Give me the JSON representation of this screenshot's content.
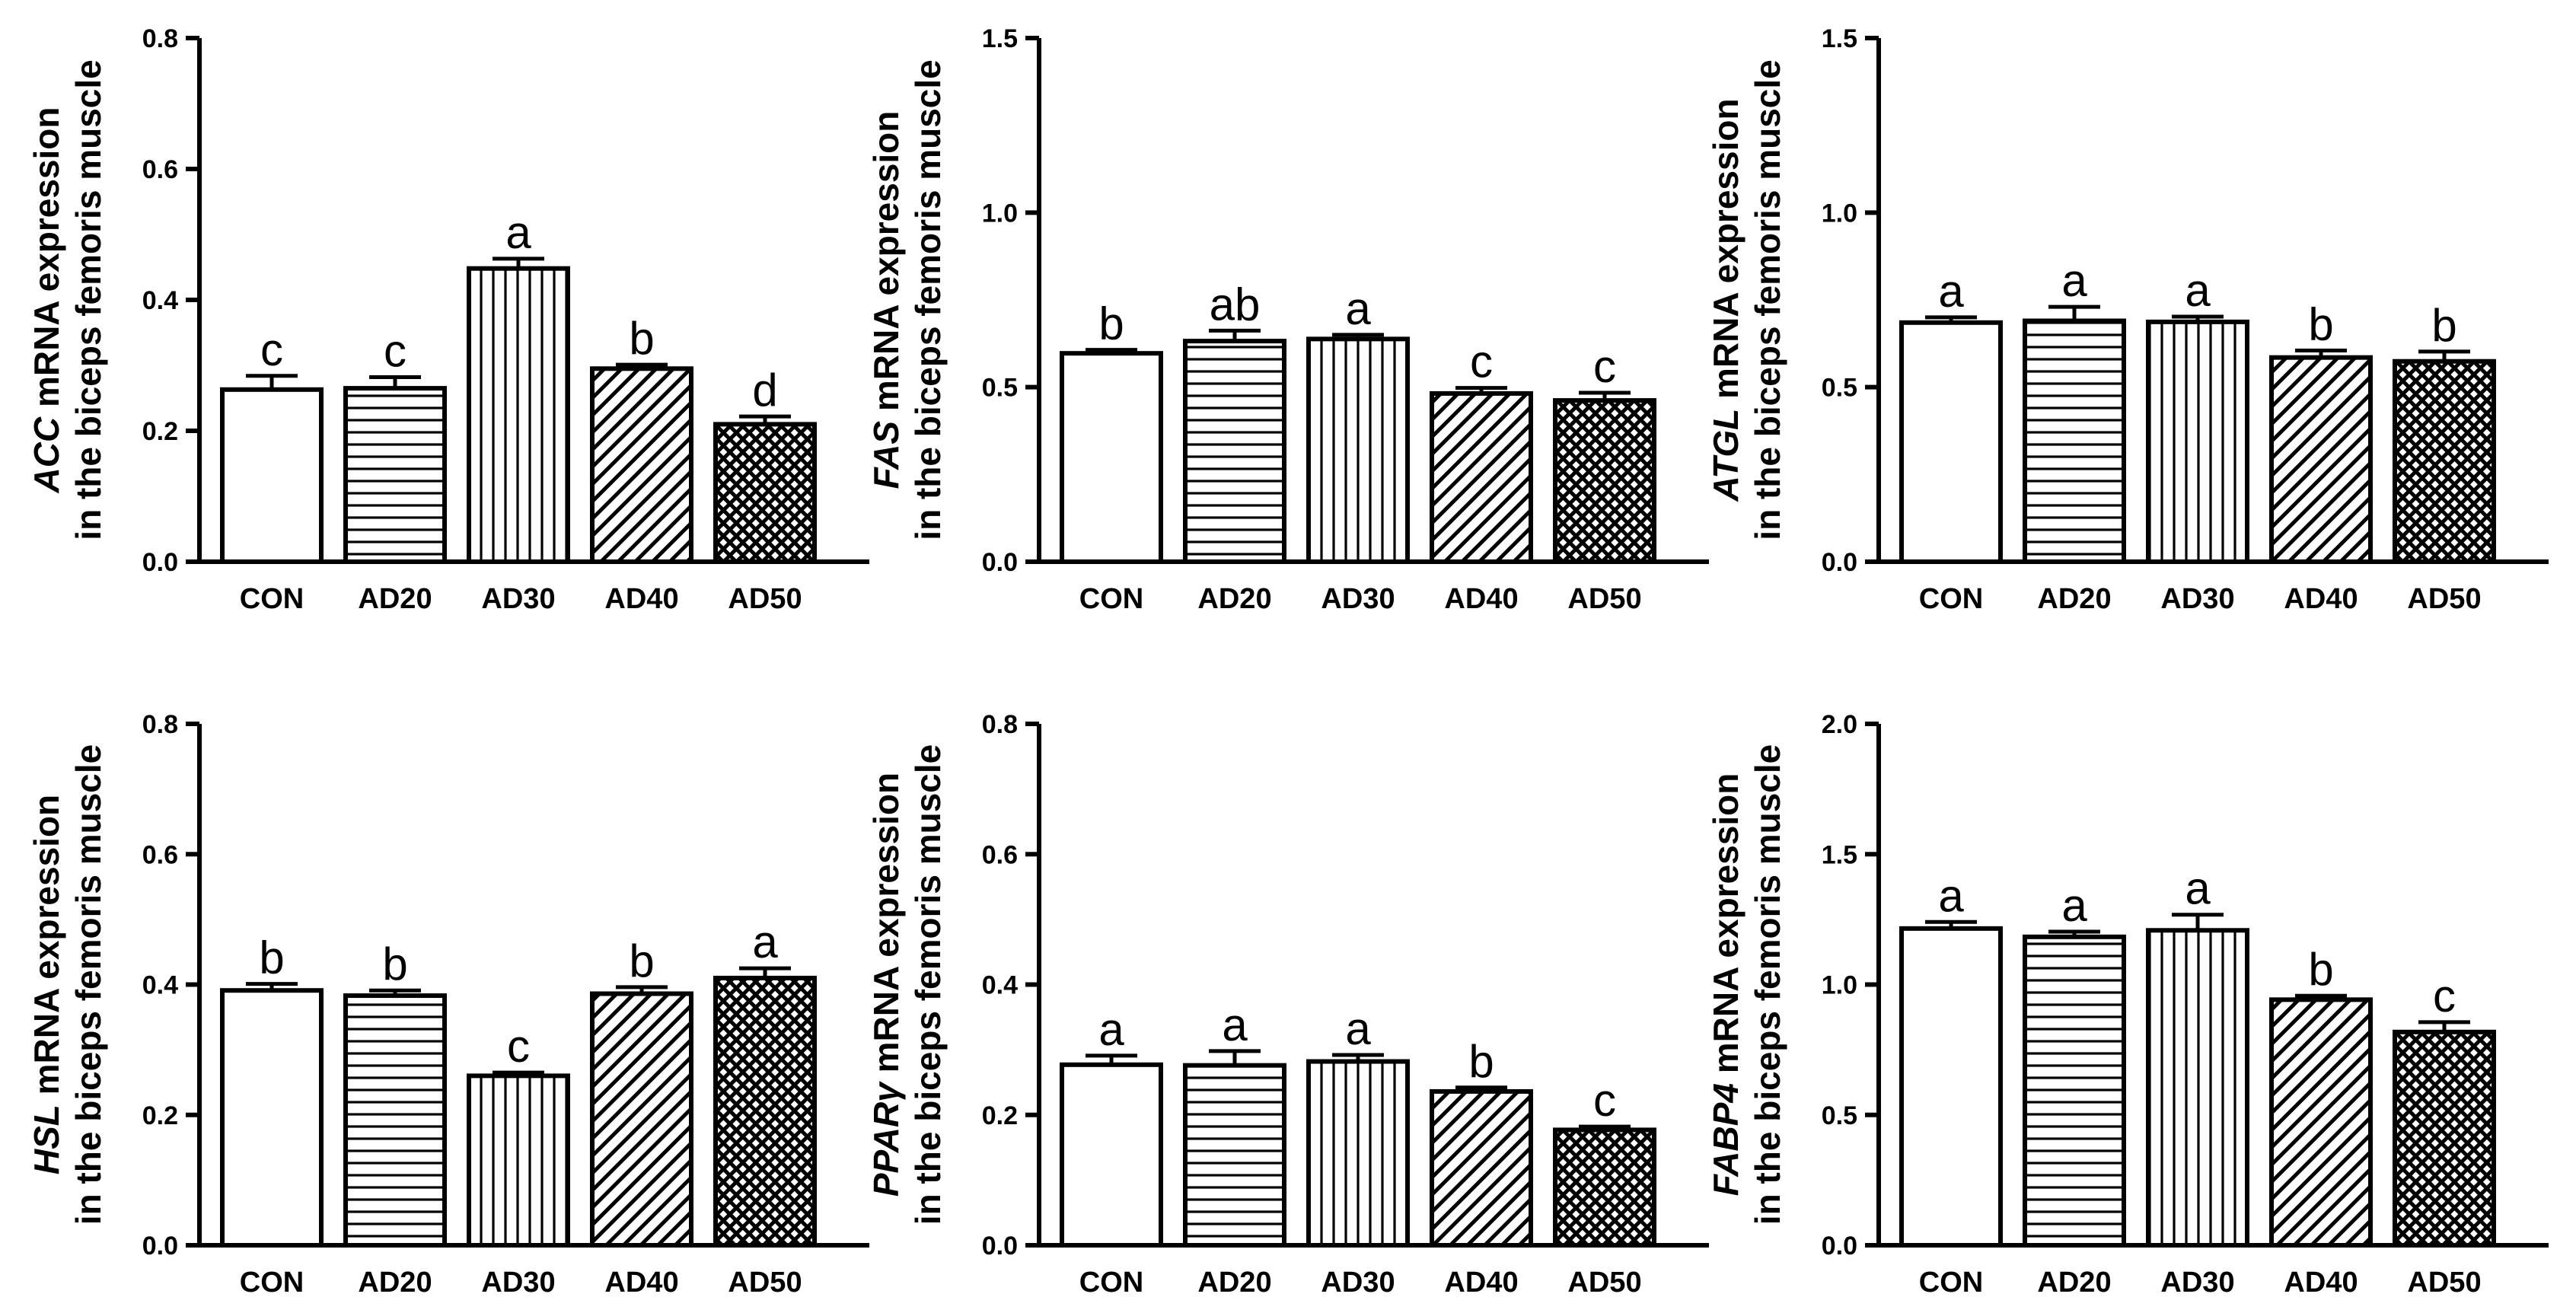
{
  "chart_data": [
    {
      "type": "bar",
      "ylabel_gene": "ACC",
      "ylabel_rest": " mRNA expression",
      "ylabel_line2": "in the biceps femoris muscle",
      "categories": [
        "CON",
        "AD20",
        "AD30",
        "AD40",
        "AD50"
      ],
      "values": [
        0.263,
        0.265,
        0.448,
        0.295,
        0.21
      ],
      "errors": [
        0.021,
        0.017,
        0.015,
        0.006,
        0.012
      ],
      "letters": [
        "c",
        "c",
        "a",
        "b",
        "d"
      ],
      "ylim": [
        0,
        0.8
      ],
      "yticks": [
        "0.0",
        "0.2",
        "0.4",
        "0.6",
        "0.8"
      ]
    },
    {
      "type": "bar",
      "ylabel_gene": "FAS",
      "ylabel_rest": " mRNA expression",
      "ylabel_line2": "in the biceps femoris muscle",
      "categories": [
        "CON",
        "AD20",
        "AD30",
        "AD40",
        "AD50"
      ],
      "values": [
        0.597,
        0.632,
        0.638,
        0.482,
        0.462
      ],
      "errors": [
        0.01,
        0.03,
        0.012,
        0.016,
        0.022
      ],
      "letters": [
        "b",
        "ab",
        "a",
        "c",
        "c"
      ],
      "ylim": [
        0,
        1.5
      ],
      "yticks": [
        "0.0",
        "0.5",
        "1.0",
        "1.5"
      ]
    },
    {
      "type": "bar",
      "ylabel_gene": "ATGL",
      "ylabel_rest": " mRNA expression",
      "ylabel_line2": "in the biceps femoris muscle",
      "categories": [
        "CON",
        "AD20",
        "AD30",
        "AD40",
        "AD50"
      ],
      "values": [
        0.685,
        0.69,
        0.687,
        0.585,
        0.574
      ],
      "errors": [
        0.015,
        0.04,
        0.015,
        0.02,
        0.028
      ],
      "letters": [
        "a",
        "a",
        "a",
        "b",
        "b"
      ],
      "ylim": [
        0,
        1.5
      ],
      "yticks": [
        "0.0",
        "0.5",
        "1.0",
        "1.5"
      ]
    },
    {
      "type": "bar",
      "ylabel_gene": "HSL",
      "ylabel_rest": " mRNA expression",
      "ylabel_line2": "in the biceps femoris muscle",
      "categories": [
        "CON",
        "AD20",
        "AD30",
        "AD40",
        "AD50"
      ],
      "values": [
        0.391,
        0.383,
        0.26,
        0.386,
        0.41
      ],
      "errors": [
        0.01,
        0.008,
        0.005,
        0.01,
        0.015
      ],
      "letters": [
        "b",
        "b",
        "c",
        "b",
        "a"
      ],
      "ylim": [
        0,
        0.8
      ],
      "yticks": [
        "0.0",
        "0.2",
        "0.4",
        "0.6",
        "0.8"
      ]
    },
    {
      "type": "bar",
      "ylabel_gene": "PPARγ",
      "ylabel_rest": " mRNA expression",
      "ylabel_line2": "in the biceps femoris muscle",
      "categories": [
        "CON",
        "AD20",
        "AD30",
        "AD40",
        "AD50"
      ],
      "values": [
        0.277,
        0.276,
        0.282,
        0.236,
        0.177
      ],
      "errors": [
        0.014,
        0.022,
        0.01,
        0.006,
        0.005
      ],
      "letters": [
        "a",
        "a",
        "a",
        "b",
        "c"
      ],
      "ylim": [
        0,
        0.8
      ],
      "yticks": [
        "0.0",
        "0.2",
        "0.4",
        "0.6",
        "0.8"
      ]
    },
    {
      "type": "bar",
      "ylabel_gene": "FABP4",
      "ylabel_rest": " mRNA expression",
      "ylabel_line2": "in the biceps femoris muscle",
      "categories": [
        "CON",
        "AD20",
        "AD30",
        "AD40",
        "AD50"
      ],
      "values": [
        1.215,
        1.183,
        1.208,
        0.942,
        0.818
      ],
      "errors": [
        0.025,
        0.02,
        0.06,
        0.015,
        0.038
      ],
      "letters": [
        "a",
        "a",
        "a",
        "b",
        "c"
      ],
      "ylim": [
        0,
        2.0
      ],
      "yticks": [
        "0.0",
        "0.5",
        "1.0",
        "1.5",
        "2.0"
      ]
    }
  ]
}
